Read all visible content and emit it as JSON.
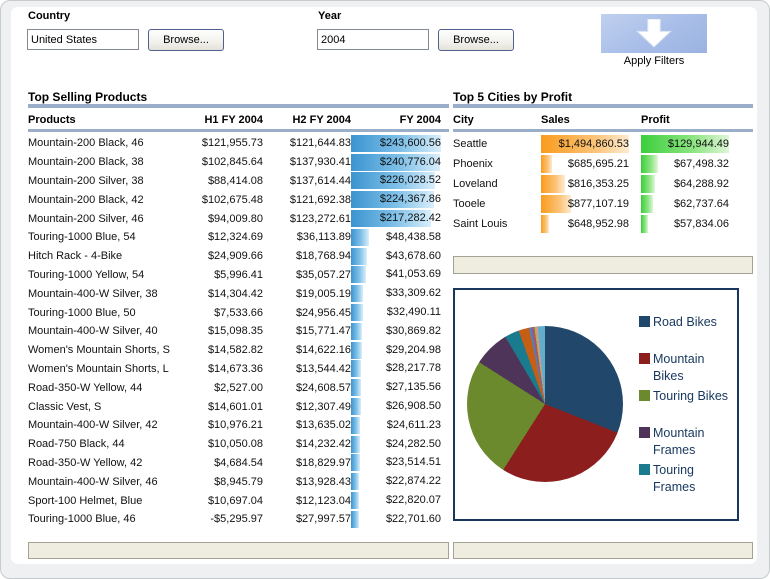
{
  "filters": {
    "country": {
      "label": "Country",
      "value": "United States",
      "browse_label": "Browse..."
    },
    "year": {
      "label": "Year",
      "value": "2004",
      "browse_label": "Browse..."
    },
    "apply_label": "Apply Filters"
  },
  "products_panel": {
    "title": "Top Selling Products",
    "columns": [
      "Products",
      "H1 FY 2004",
      "H2 FY 2004",
      "FY 2004"
    ],
    "rows": [
      {
        "product": "Mountain-200 Black, 46",
        "h1": "$121,955.73",
        "h2": "$121,644.83",
        "fy": "$243,600.56",
        "fy_value": 243600.56
      },
      {
        "product": "Mountain-200 Black, 38",
        "h1": "$102,845.64",
        "h2": "$137,930.41",
        "fy": "$240,776.04",
        "fy_value": 240776.04
      },
      {
        "product": "Mountain-200 Silver, 38",
        "h1": "$88,414.08",
        "h2": "$137,614.44",
        "fy": "$226,028.52",
        "fy_value": 226028.52
      },
      {
        "product": "Mountain-200 Black, 42",
        "h1": "$102,675.48",
        "h2": "$121,692.38",
        "fy": "$224,367.86",
        "fy_value": 224367.86
      },
      {
        "product": "Mountain-200 Silver, 46",
        "h1": "$94,009.80",
        "h2": "$123,272.61",
        "fy": "$217,282.42",
        "fy_value": 217282.42
      },
      {
        "product": "Touring-1000 Blue, 54",
        "h1": "$12,324.69",
        "h2": "$36,113.89",
        "fy": "$48,438.58",
        "fy_value": 48438.58
      },
      {
        "product": "Hitch Rack - 4-Bike",
        "h1": "$24,909.66",
        "h2": "$18,768.94",
        "fy": "$43,678.60",
        "fy_value": 43678.6
      },
      {
        "product": "Touring-1000 Yellow, 54",
        "h1": "$5,996.41",
        "h2": "$35,057.27",
        "fy": "$41,053.69",
        "fy_value": 41053.69
      },
      {
        "product": "Mountain-400-W Silver, 38",
        "h1": "$14,304.42",
        "h2": "$19,005.19",
        "fy": "$33,309.62",
        "fy_value": 33309.62
      },
      {
        "product": "Touring-1000 Blue, 50",
        "h1": "$7,533.66",
        "h2": "$24,956.45",
        "fy": "$32,490.11",
        "fy_value": 32490.11
      },
      {
        "product": "Mountain-400-W Silver, 40",
        "h1": "$15,098.35",
        "h2": "$15,771.47",
        "fy": "$30,869.82",
        "fy_value": 30869.82
      },
      {
        "product": "Women's Mountain Shorts, S",
        "h1": "$14,582.82",
        "h2": "$14,622.16",
        "fy": "$29,204.98",
        "fy_value": 29204.98
      },
      {
        "product": "Women's Mountain Shorts, L",
        "h1": "$14,673.36",
        "h2": "$13,544.42",
        "fy": "$28,217.78",
        "fy_value": 28217.78
      },
      {
        "product": "Road-350-W Yellow, 44",
        "h1": "$2,527.00",
        "h2": "$24,608.57",
        "fy": "$27,135.56",
        "fy_value": 27135.56
      },
      {
        "product": "Classic Vest, S",
        "h1": "$14,601.01",
        "h2": "$12,307.49",
        "fy": "$26,908.50",
        "fy_value": 26908.5
      },
      {
        "product": "Mountain-400-W Silver, 42",
        "h1": "$10,976.21",
        "h2": "$13,635.02",
        "fy": "$24,611.23",
        "fy_value": 24611.23
      },
      {
        "product": "Road-750 Black, 44",
        "h1": "$10,050.08",
        "h2": "$14,232.42",
        "fy": "$24,282.50",
        "fy_value": 24282.5
      },
      {
        "product": "Road-350-W Yellow, 42",
        "h1": "$4,684.54",
        "h2": "$18,829.97",
        "fy": "$23,514.51",
        "fy_value": 23514.51
      },
      {
        "product": "Mountain-400-W Silver, 46",
        "h1": "$8,945.79",
        "h2": "$13,928.43",
        "fy": "$22,874.22",
        "fy_value": 22874.22
      },
      {
        "product": "Sport-100 Helmet, Blue",
        "h1": "$10,697.04",
        "h2": "$12,123.04",
        "fy": "$22,820.07",
        "fy_value": 22820.07
      },
      {
        "product": "Touring-1000 Blue, 46",
        "h1": "-$5,295.97",
        "h2": "$27,997.57",
        "fy": "$22,701.60",
        "fy_value": 22701.6
      }
    ]
  },
  "cities_panel": {
    "title": "Top 5 Cities by Profit",
    "columns": [
      "City",
      "Sales",
      "Profit"
    ],
    "rows": [
      {
        "city": "Seattle",
        "sales": "$1,494,860.53",
        "sales_value": 1494860.53,
        "profit": "$129,944.49",
        "profit_value": 129944.49
      },
      {
        "city": "Phoenix",
        "sales": "$685,695.21",
        "sales_value": 685695.21,
        "profit": "$67,498.32",
        "profit_value": 67498.32
      },
      {
        "city": "Loveland",
        "sales": "$816,353.25",
        "sales_value": 816353.25,
        "profit": "$64,288.92",
        "profit_value": 64288.92
      },
      {
        "city": "Tooele",
        "sales": "$877,107.19",
        "sales_value": 877107.19,
        "profit": "$62,737.64",
        "profit_value": 62737.64
      },
      {
        "city": "Saint Louis",
        "sales": "$648,952.98",
        "sales_value": 648952.98,
        "profit": "$57,834.06",
        "profit_value": 57834.06
      }
    ]
  },
  "chart_data": {
    "type": "pie",
    "legend_position": "right",
    "slices": [
      {
        "label": "Road Bikes",
        "pct": 31.0,
        "color": "#21486B"
      },
      {
        "label": "Mountain Bikes",
        "pct": 28.0,
        "color": "#8C1E1E"
      },
      {
        "label": "Touring Bikes",
        "pct": 25.0,
        "color": "#6B8A2D"
      },
      {
        "label": "Mountain Frames",
        "pct": 7.5,
        "color": "#4F3459"
      },
      {
        "label": "Touring Frames",
        "pct": 3.0,
        "color": "#1A7A8E"
      },
      {
        "label": "",
        "pct": 2.2,
        "color": "#C65F13"
      },
      {
        "label": "",
        "pct": 0.4,
        "color": "#4F81BD"
      },
      {
        "label": "",
        "pct": 0.35,
        "color": "#8064A2"
      },
      {
        "label": "",
        "pct": 0.35,
        "color": "#C0504D"
      },
      {
        "label": "",
        "pct": 0.35,
        "color": "#9BBB59"
      },
      {
        "label": "",
        "pct": 0.35,
        "color": "#D99694"
      },
      {
        "label": "",
        "pct": 1.5,
        "color": "#62ACCC"
      }
    ],
    "legend_lines": [
      "Road Bikes",
      "Mountain\nBikes",
      "Touring Bikes",
      "Mountain\nFrames",
      "Touring\nFrames"
    ]
  },
  "colors": {
    "accent_rule": "#9AAEC9",
    "fy_bar": "#3B94D0",
    "sales_bar": "#F99C1E",
    "profit_bar": "#3BCE3B",
    "apply_button": "#A8BEE8",
    "panel_border": "#17375E",
    "legend_text": "#17375E",
    "beige_bar": "#EFECE0"
  }
}
